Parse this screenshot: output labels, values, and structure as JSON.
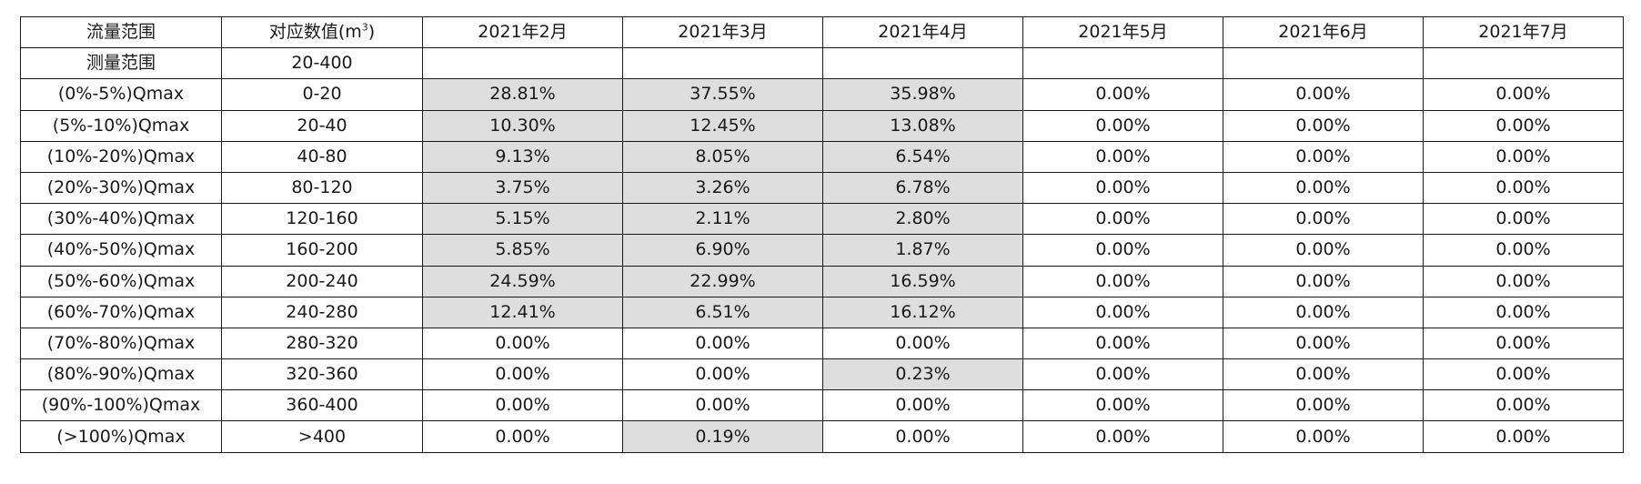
{
  "header": {
    "col0": "流量范围",
    "col1_prefix": "对应数值(m",
    "col1_sup": "3",
    "col1_suffix": ")",
    "months": [
      "2021年2月",
      "2021年3月",
      "2021年4月",
      "2021年5月",
      "2021年6月",
      "2021年7月"
    ]
  },
  "measure_row": {
    "label": "测量范围",
    "value": "20-400",
    "cells": [
      "",
      "",
      "",
      "",
      "",
      ""
    ]
  },
  "rows": [
    {
      "range": "(0%-5%)Qmax",
      "value": "0-20",
      "cells": [
        "28.81%",
        "37.55%",
        "35.98%",
        "0.00%",
        "0.00%",
        "0.00%"
      ]
    },
    {
      "range": "(5%-10%)Qmax",
      "value": "20-40",
      "cells": [
        "10.30%",
        "12.45%",
        "13.08%",
        "0.00%",
        "0.00%",
        "0.00%"
      ]
    },
    {
      "range": "(10%-20%)Qmax",
      "value": "40-80",
      "cells": [
        "9.13%",
        "8.05%",
        "6.54%",
        "0.00%",
        "0.00%",
        "0.00%"
      ]
    },
    {
      "range": "(20%-30%)Qmax",
      "value": "80-120",
      "cells": [
        "3.75%",
        "3.26%",
        "6.78%",
        "0.00%",
        "0.00%",
        "0.00%"
      ]
    },
    {
      "range": "(30%-40%)Qmax",
      "value": "120-160",
      "cells": [
        "5.15%",
        "2.11%",
        "2.80%",
        "0.00%",
        "0.00%",
        "0.00%"
      ]
    },
    {
      "range": "(40%-50%)Qmax",
      "value": "160-200",
      "cells": [
        "5.85%",
        "6.90%",
        "1.87%",
        "0.00%",
        "0.00%",
        "0.00%"
      ]
    },
    {
      "range": "(50%-60%)Qmax",
      "value": "200-240",
      "cells": [
        "24.59%",
        "22.99%",
        "16.59%",
        "0.00%",
        "0.00%",
        "0.00%"
      ]
    },
    {
      "range": "(60%-70%)Qmax",
      "value": "240-280",
      "cells": [
        "12.41%",
        "6.51%",
        "16.12%",
        "0.00%",
        "0.00%",
        "0.00%"
      ]
    },
    {
      "range": "(70%-80%)Qmax",
      "value": "280-320",
      "cells": [
        "0.00%",
        "0.00%",
        "0.00%",
        "0.00%",
        "0.00%",
        "0.00%"
      ]
    },
    {
      "range": "(80%-90%)Qmax",
      "value": "320-360",
      "cells": [
        "0.00%",
        "0.00%",
        "0.23%",
        "0.00%",
        "0.00%",
        "0.00%"
      ]
    },
    {
      "range": "(90%-100%)Qmax",
      "value": "360-400",
      "cells": [
        "0.00%",
        "0.00%",
        "0.00%",
        "0.00%",
        "0.00%",
        "0.00%"
      ]
    },
    {
      "range": "(>100%)Qmax",
      "value": ">400",
      "cells": [
        "0.00%",
        "0.19%",
        "0.00%",
        "0.00%",
        "0.00%",
        "0.00%"
      ]
    }
  ],
  "shaded_cells": [
    [
      0,
      0
    ],
    [
      0,
      1
    ],
    [
      0,
      2
    ],
    [
      1,
      0
    ],
    [
      1,
      1
    ],
    [
      1,
      2
    ],
    [
      2,
      0
    ],
    [
      2,
      1
    ],
    [
      2,
      2
    ],
    [
      3,
      0
    ],
    [
      3,
      1
    ],
    [
      3,
      2
    ],
    [
      4,
      0
    ],
    [
      4,
      1
    ],
    [
      4,
      2
    ],
    [
      5,
      0
    ],
    [
      5,
      1
    ],
    [
      5,
      2
    ],
    [
      6,
      0
    ],
    [
      6,
      1
    ],
    [
      6,
      2
    ],
    [
      7,
      0
    ],
    [
      7,
      1
    ],
    [
      7,
      2
    ],
    [
      9,
      2
    ],
    [
      11,
      1
    ]
  ],
  "colors": {
    "shade": "#dedede",
    "border": "#1a1a1a"
  }
}
